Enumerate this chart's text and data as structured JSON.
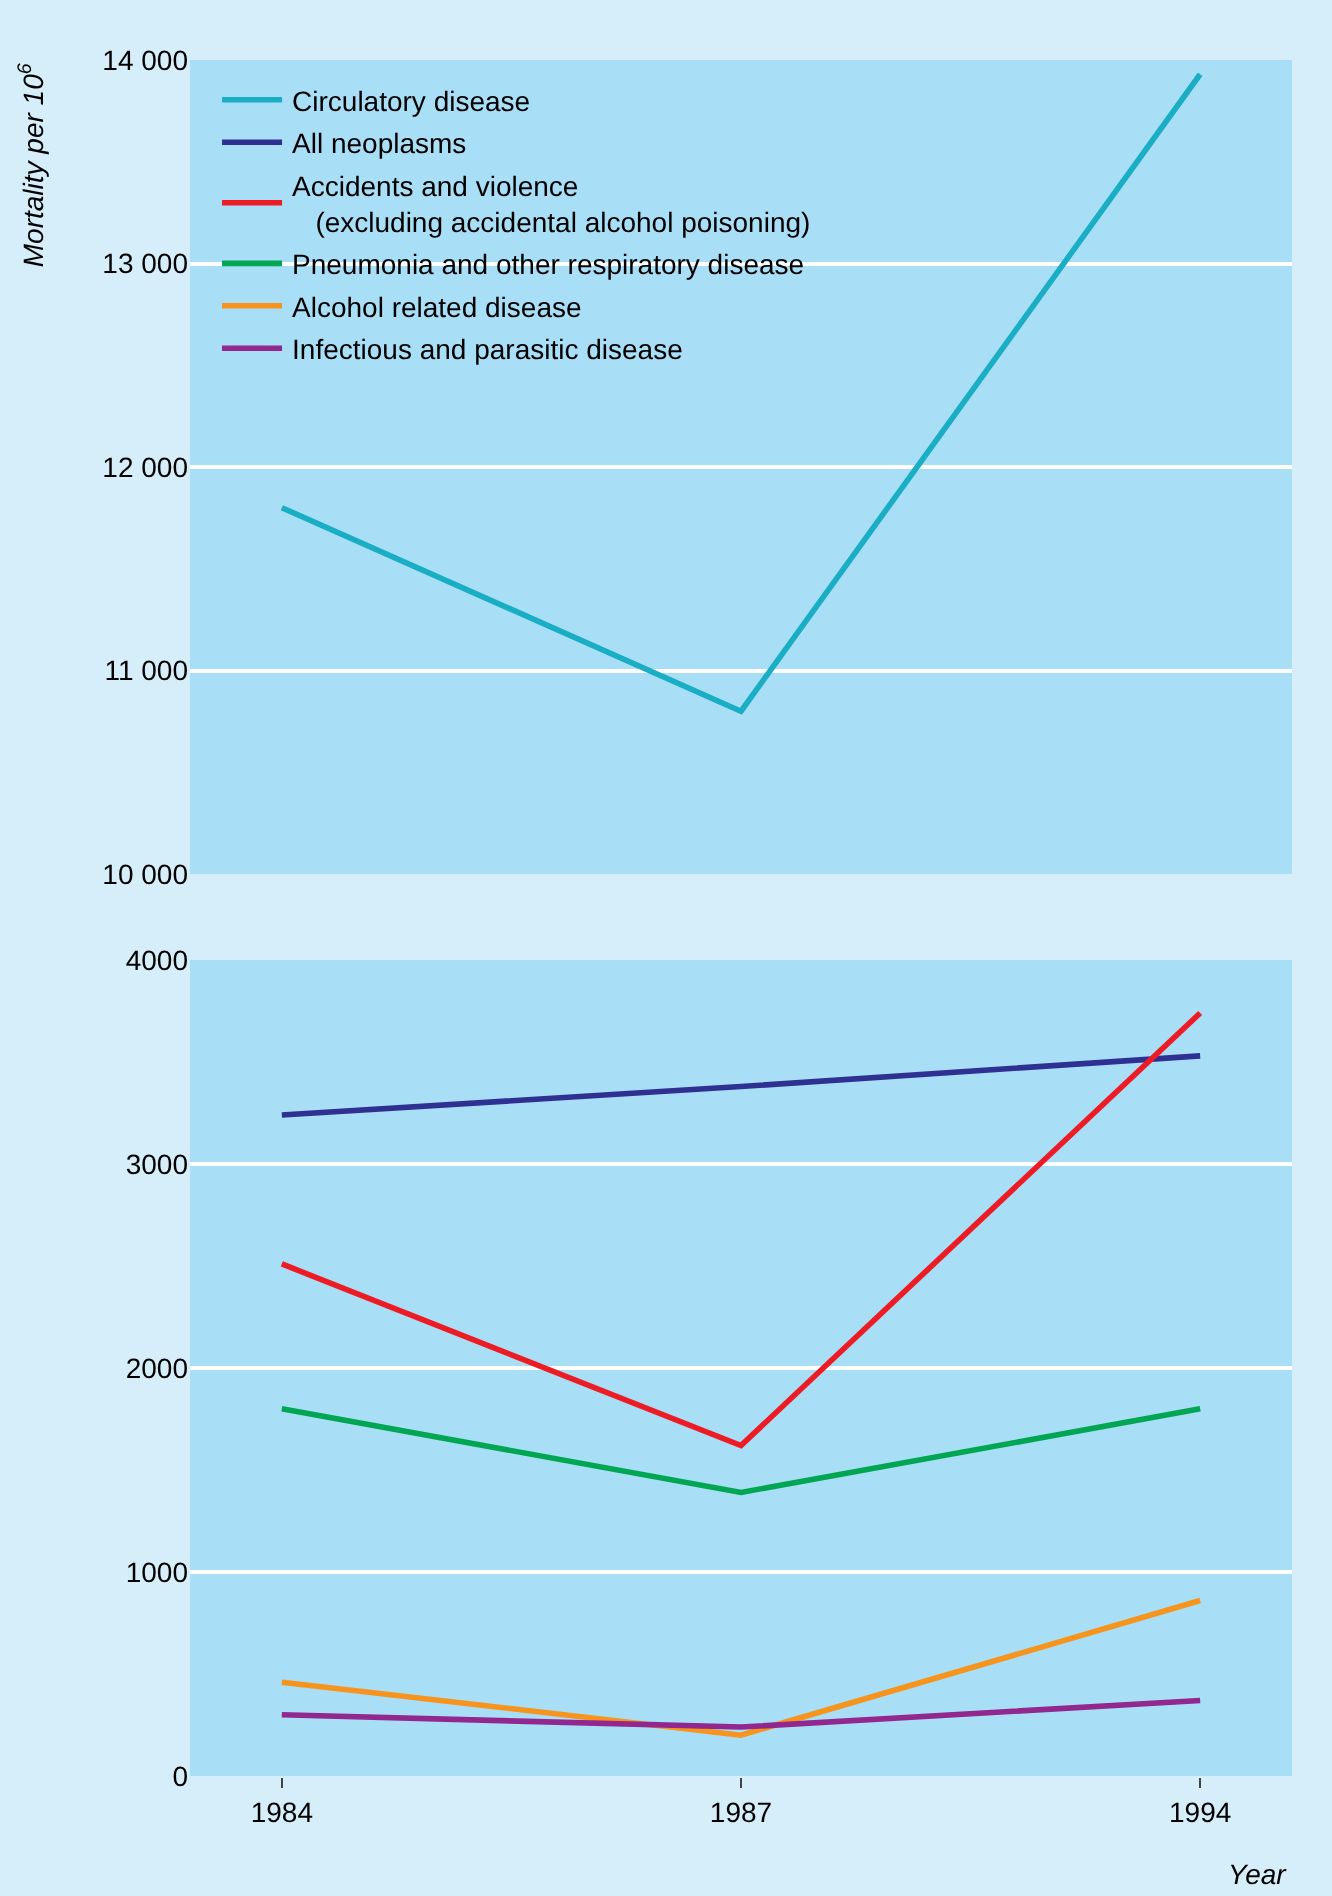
{
  "chart_data": [
    {
      "type": "line",
      "ylabel": "Mortality per 10$^{6}$",
      "categories": [
        "1984",
        "1987",
        "1994"
      ],
      "ylim": [
        10000,
        14000
      ],
      "yticks": [
        {
          "value": 10000,
          "label": "10 000"
        },
        {
          "value": 11000,
          "label": "11 000"
        },
        {
          "value": 12000,
          "label": "12 000"
        },
        {
          "value": 13000,
          "label": "13 000"
        },
        {
          "value": 14000,
          "label": "14 000"
        }
      ],
      "grid": "y",
      "legend": "top left",
      "tick_labels": "y",
      "marker": "none",
      "series": [
        {
          "name": "Circulatory disease",
          "color": "#1aaec4",
          "values": [
            11800,
            10800,
            13930
          ]
        }
      ]
    },
    {
      "type": "line",
      "xlabel": "Year",
      "categories": [
        "1984",
        "1987",
        "1994"
      ],
      "ylim": [
        0,
        4000
      ],
      "yticks": [
        0,
        1000,
        2000,
        3000,
        4000
      ],
      "grid": "y",
      "legend": "top left",
      "marker": "none",
      "series": [
        {
          "name": "All neoplasms",
          "color": "#2e3192",
          "values": [
            3240,
            3380,
            3530
          ]
        },
        {
          "name": "Accidents and violence\n(excluding accidental alcohol poisoning)",
          "color": "#ed1c24",
          "values": [
            2510,
            1620,
            3740
          ]
        },
        {
          "name": "Pneumonia and other respiratory disease",
          "color": "#00a651",
          "values": [
            1800,
            1390,
            1800
          ]
        },
        {
          "name": "Alcohol related disease",
          "color": "#f7941d",
          "values": [
            460,
            200,
            860
          ]
        },
        {
          "name": "Infectious and parasitic disease",
          "color": "#92278f",
          "values": [
            300,
            240,
            370
          ]
        }
      ]
    }
  ]
}
